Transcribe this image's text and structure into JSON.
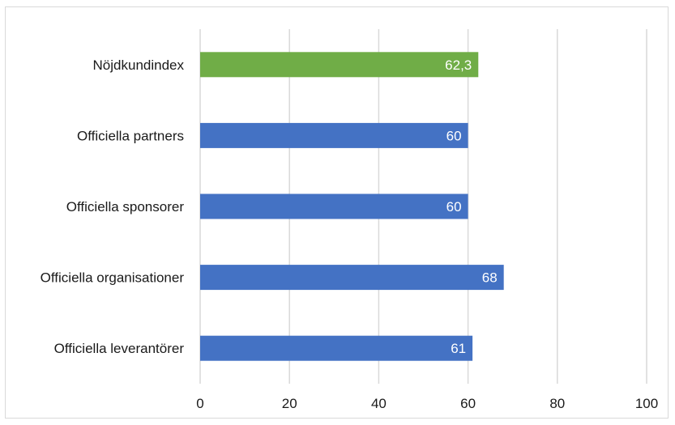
{
  "chart_data": {
    "type": "bar",
    "orientation": "horizontal",
    "title": "",
    "xlabel": "",
    "ylabel": "",
    "xlim": [
      0,
      100
    ],
    "ticks": [
      0,
      20,
      40,
      60,
      80,
      100
    ],
    "tick_labels": [
      "0",
      "20",
      "40",
      "60",
      "80",
      "100"
    ],
    "grid": true,
    "legend": "none",
    "categories": [
      "Nöjdkundindex",
      "Officiella partners",
      "Officiella sponsorer",
      "Officiella organisationer",
      "Officiella leverantörer"
    ],
    "values": [
      62.3,
      60,
      60,
      68,
      61
    ],
    "data_labels": [
      "62,3",
      "60",
      "60",
      "68",
      "61"
    ],
    "colors": [
      "#70ad47",
      "#4472c4",
      "#4472c4",
      "#4472c4",
      "#4472c4"
    ]
  }
}
